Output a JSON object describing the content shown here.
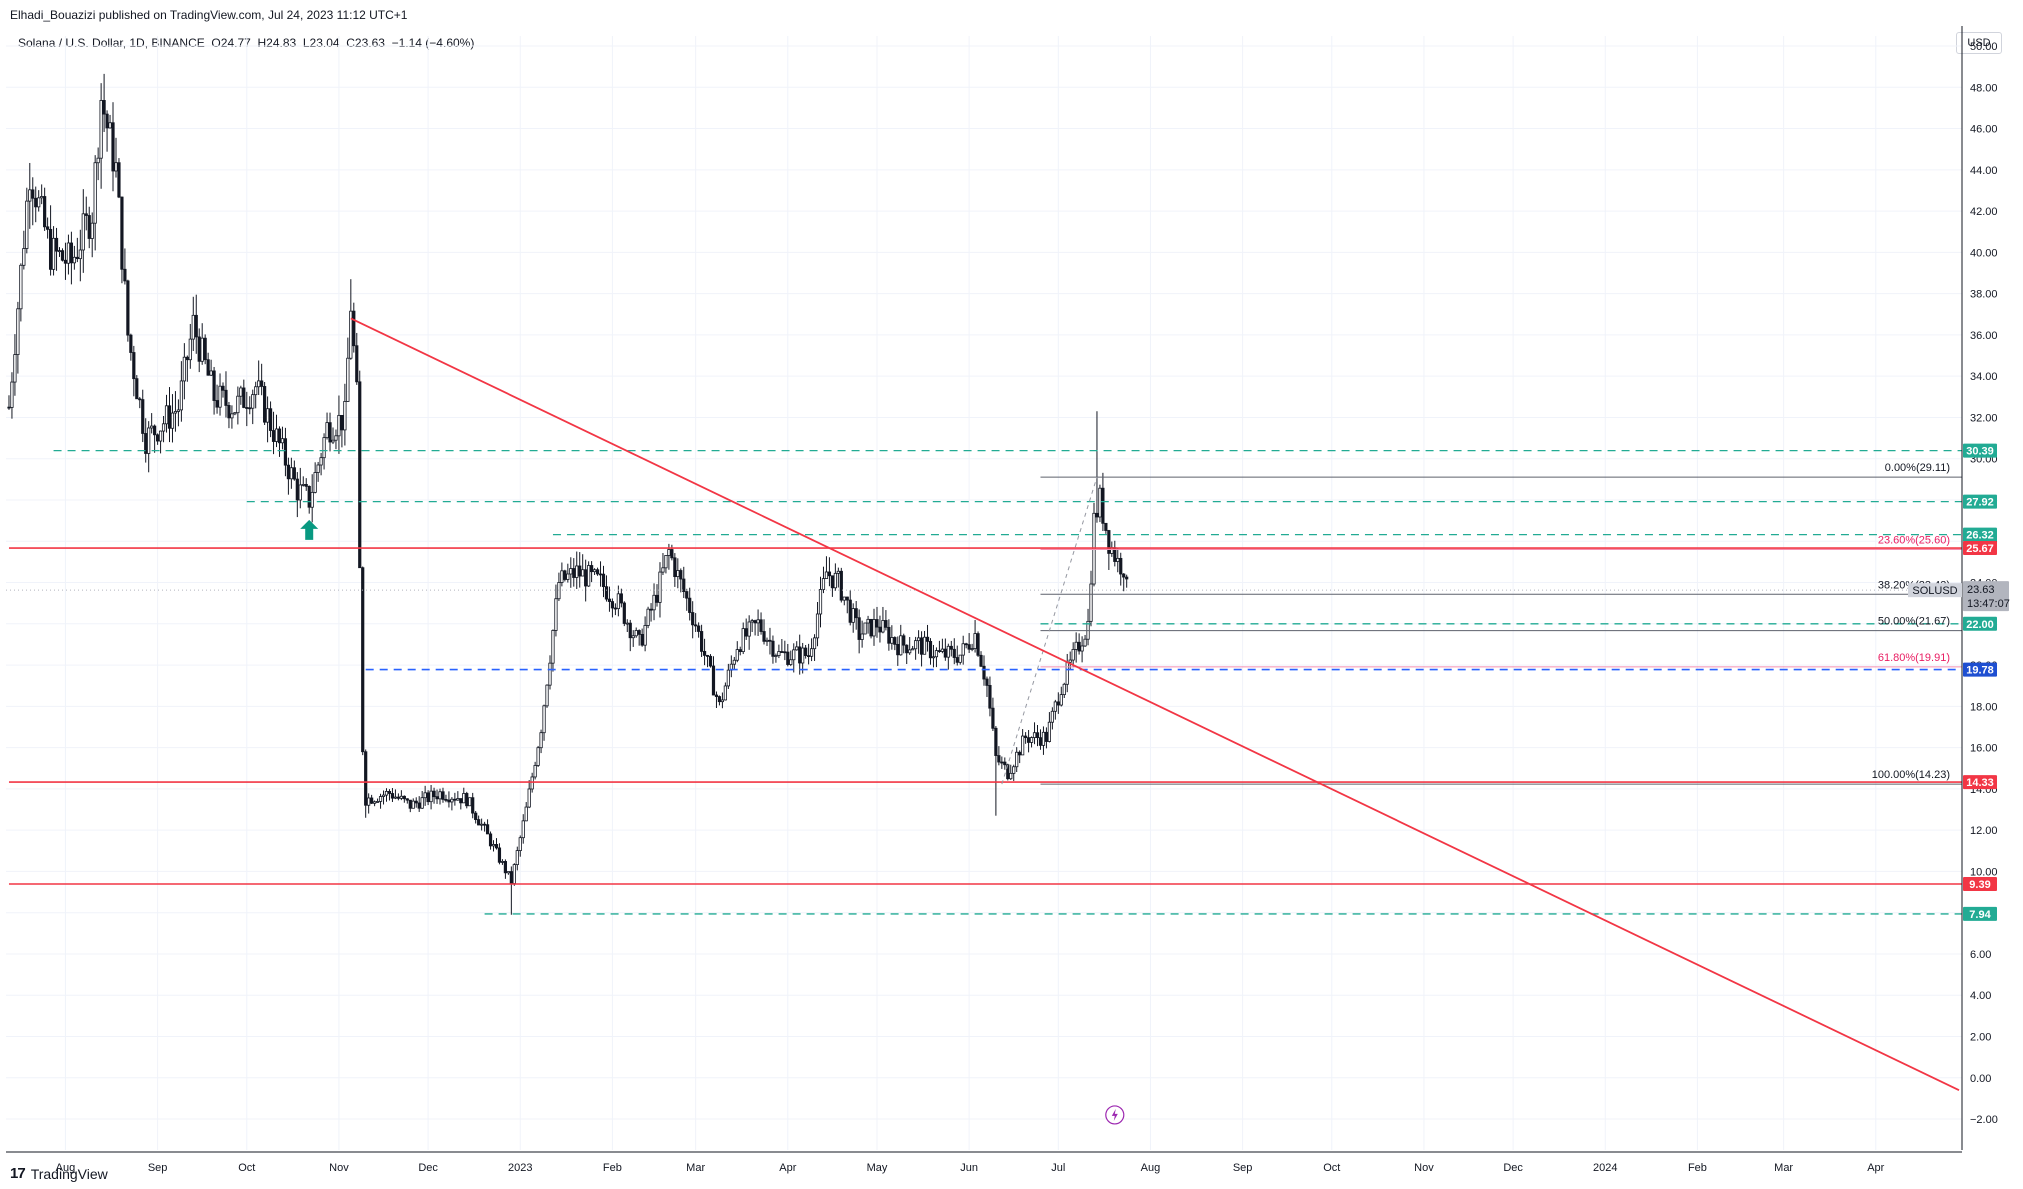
{
  "header": {
    "published_text": "Elhadi_Bouazizi published on TradingView.com, Jul 24, 2023 11:12 UTC+1"
  },
  "legend": {
    "symbol": "Solana / U.S. Dollar, 1D, BINANCE",
    "open_label": "O",
    "open": "24.77",
    "high_label": "H",
    "high": "24.83",
    "low_label": "L",
    "low": "23.04",
    "close_label": "C",
    "close": "23.63",
    "change": "−1.14 (−4.60%)"
  },
  "currency_button": "USD",
  "footer": {
    "logo": "17",
    "brand": "TradingView"
  },
  "colors": {
    "candle": "#131722",
    "red_line": "#f23645",
    "green_dash": "#22ab94",
    "blue_dash": "#2962ff",
    "fib_gray": "#787b86",
    "fib_pink": "#e91e63",
    "price_badge": "#b2b5be"
  },
  "chart_data": {
    "type": "candlestick",
    "y_axis": {
      "min": -3.5,
      "max": 50,
      "ticks": [
        "50.00",
        "48.00",
        "46.00",
        "44.00",
        "42.00",
        "40.00",
        "38.00",
        "36.00",
        "34.00",
        "32.00",
        "30.00",
        "28.00",
        "26.00",
        "24.00",
        "22.00",
        "20.00",
        "18.00",
        "16.00",
        "14.00",
        "12.00",
        "10.00",
        "8.00",
        "6.00",
        "4.00",
        "2.00",
        "0.00",
        "−2.00"
      ],
      "tick_values": [
        50,
        48,
        46,
        44,
        42,
        40,
        38,
        36,
        34,
        32,
        30,
        28,
        26,
        24,
        22,
        20,
        18,
        16,
        14,
        12,
        10,
        8,
        6,
        4,
        2,
        0,
        -2
      ]
    },
    "x_axis": {
      "labels": [
        "Aug",
        "Sep",
        "Oct",
        "Nov",
        "Dec",
        "2023",
        "Feb",
        "Mar",
        "Apr",
        "May",
        "Jun",
        "Jul",
        "Aug",
        "Sep",
        "Oct",
        "Nov",
        "Dec",
        "2024",
        "Feb",
        "Mar",
        "Apr"
      ],
      "label_dates": [
        "2022-08-01",
        "2022-09-01",
        "2022-10-01",
        "2022-11-01",
        "2022-12-01",
        "2023-01-01",
        "2023-02-01",
        "2023-03-01",
        "2023-04-01",
        "2023-05-01",
        "2023-06-01",
        "2023-07-01",
        "2023-08-01",
        "2023-09-01",
        "2023-10-01",
        "2023-11-01",
        "2023-12-01",
        "2024-01-01",
        "2024-02-01",
        "2024-03-01",
        "2024-04-01"
      ]
    },
    "price_path": [
      [
        "2022-07-13",
        32.5
      ],
      [
        "2022-07-20",
        44.0
      ],
      [
        "2022-07-27",
        40.0
      ],
      [
        "2022-08-03",
        39.5
      ],
      [
        "2022-08-10",
        42.0
      ],
      [
        "2022-08-13",
        47.5
      ],
      [
        "2022-08-18",
        44.0
      ],
      [
        "2022-08-22",
        36.0
      ],
      [
        "2022-08-28",
        31.0
      ],
      [
        "2022-09-01",
        31.5
      ],
      [
        "2022-09-08",
        32.5
      ],
      [
        "2022-09-13",
        36.5
      ],
      [
        "2022-09-20",
        33.0
      ],
      [
        "2022-09-27",
        32.5
      ],
      [
        "2022-10-04",
        33.5
      ],
      [
        "2022-10-11",
        31.0
      ],
      [
        "2022-10-18",
        28.5
      ],
      [
        "2022-10-22",
        28.0
      ],
      [
        "2022-10-28",
        31.5
      ],
      [
        "2022-11-03",
        32.0
      ],
      [
        "2022-11-05",
        37.5
      ],
      [
        "2022-11-07",
        33.0
      ],
      [
        "2022-11-09",
        16.0
      ],
      [
        "2022-11-10",
        13.5
      ],
      [
        "2022-11-18",
        13.8
      ],
      [
        "2022-11-25",
        13.2
      ],
      [
        "2022-12-05",
        13.8
      ],
      [
        "2022-12-14",
        13.5
      ],
      [
        "2022-12-20",
        12.0
      ],
      [
        "2022-12-29",
        9.5
      ],
      [
        "2023-01-03",
        13.0
      ],
      [
        "2023-01-08",
        17.0
      ],
      [
        "2023-01-14",
        24.0
      ],
      [
        "2023-01-20",
        24.5
      ],
      [
        "2023-01-28",
        24.0
      ],
      [
        "2023-02-03",
        23.0
      ],
      [
        "2023-02-10",
        21.0
      ],
      [
        "2023-02-16",
        23.5
      ],
      [
        "2023-02-20",
        25.5
      ],
      [
        "2023-03-01",
        22.0
      ],
      [
        "2023-03-09",
        18.0
      ],
      [
        "2023-03-15",
        21.0
      ],
      [
        "2023-03-22",
        22.0
      ],
      [
        "2023-03-29",
        20.5
      ],
      [
        "2023-04-08",
        20.5
      ],
      [
        "2023-04-14",
        24.5
      ],
      [
        "2023-04-18",
        24.0
      ],
      [
        "2023-04-25",
        21.5
      ],
      [
        "2023-05-01",
        22.0
      ],
      [
        "2023-05-08",
        21.0
      ],
      [
        "2023-05-15",
        21.0
      ],
      [
        "2023-05-22",
        20.5
      ],
      [
        "2023-05-29",
        20.5
      ],
      [
        "2023-06-03",
        21.5
      ],
      [
        "2023-06-07",
        19.0
      ],
      [
        "2023-06-10",
        15.5
      ],
      [
        "2023-06-14",
        14.8
      ],
      [
        "2023-06-20",
        16.5
      ],
      [
        "2023-06-27",
        16.5
      ],
      [
        "2023-07-02",
        19.0
      ],
      [
        "2023-07-08",
        21.0
      ],
      [
        "2023-07-11",
        22.0
      ],
      [
        "2023-07-13",
        27.0
      ],
      [
        "2023-07-15",
        28.0
      ],
      [
        "2023-07-18",
        26.0
      ],
      [
        "2023-07-21",
        25.0
      ],
      [
        "2023-07-23",
        24.77
      ],
      [
        "2023-07-24",
        23.63
      ]
    ],
    "price_extremes": [
      [
        "2022-08-13",
        48.2
      ],
      [
        "2022-11-05",
        38.7
      ],
      [
        "2022-11-10",
        12.6
      ],
      [
        "2022-12-29",
        7.9
      ],
      [
        "2023-06-10",
        12.7
      ],
      [
        "2023-07-14",
        32.3
      ]
    ],
    "green_arrow": {
      "date": "2022-10-22",
      "price": 26.5
    },
    "horizontal_levels": [
      {
        "price": 30.39,
        "label": "30.39",
        "style": "green-dash",
        "from": "2022-07-28"
      },
      {
        "price": 27.92,
        "label": "27.92",
        "style": "green-dash",
        "from": "2022-10-01"
      },
      {
        "price": 26.32,
        "label": "26.32",
        "style": "green-dash",
        "from": "2023-01-12"
      },
      {
        "price": 25.67,
        "label": "25.67",
        "style": "red-solid",
        "from": "2022-07-13"
      },
      {
        "price": 22.0,
        "label": "22.00",
        "style": "green-dash",
        "from": "2023-06-25"
      },
      {
        "price": 19.78,
        "label": "19.78",
        "style": "blue-dash",
        "from": "2022-11-10"
      },
      {
        "price": 14.33,
        "label": "14.33",
        "style": "red-solid",
        "from": "2022-07-13"
      },
      {
        "price": 9.39,
        "label": "9.39",
        "style": "red-solid",
        "from": "2022-07-13"
      },
      {
        "price": 7.94,
        "label": "7.94",
        "style": "green-dash",
        "from": "2022-12-20"
      }
    ],
    "trendline": {
      "start": [
        "2022-11-05",
        36.8
      ],
      "end": [
        "2024-04-29",
        -0.6
      ]
    },
    "fibonacci": {
      "from_date": "2023-06-25",
      "levels": [
        {
          "price": 29.11,
          "label": "0.00%(29.11)",
          "color": "gray"
        },
        {
          "price": 25.6,
          "label": "23.60%(25.60)",
          "color": "pink"
        },
        {
          "price": 23.43,
          "label": "38.20%(23.43)",
          "color": "gray"
        },
        {
          "price": 21.67,
          "label": "50.00%(21.67)",
          "color": "gray"
        },
        {
          "price": 19.91,
          "label": "61.80%(19.91)",
          "color": "pink"
        },
        {
          "price": 14.23,
          "label": "100.00%(14.23)",
          "color": "gray"
        }
      ],
      "diagonal": {
        "start": [
          "2023-06-12",
          14.23
        ],
        "end": [
          "2023-07-14",
          29.11
        ]
      }
    },
    "current_price": {
      "symbol": "SOLUSD",
      "price": "23.63",
      "countdown": "13:47:07"
    }
  }
}
